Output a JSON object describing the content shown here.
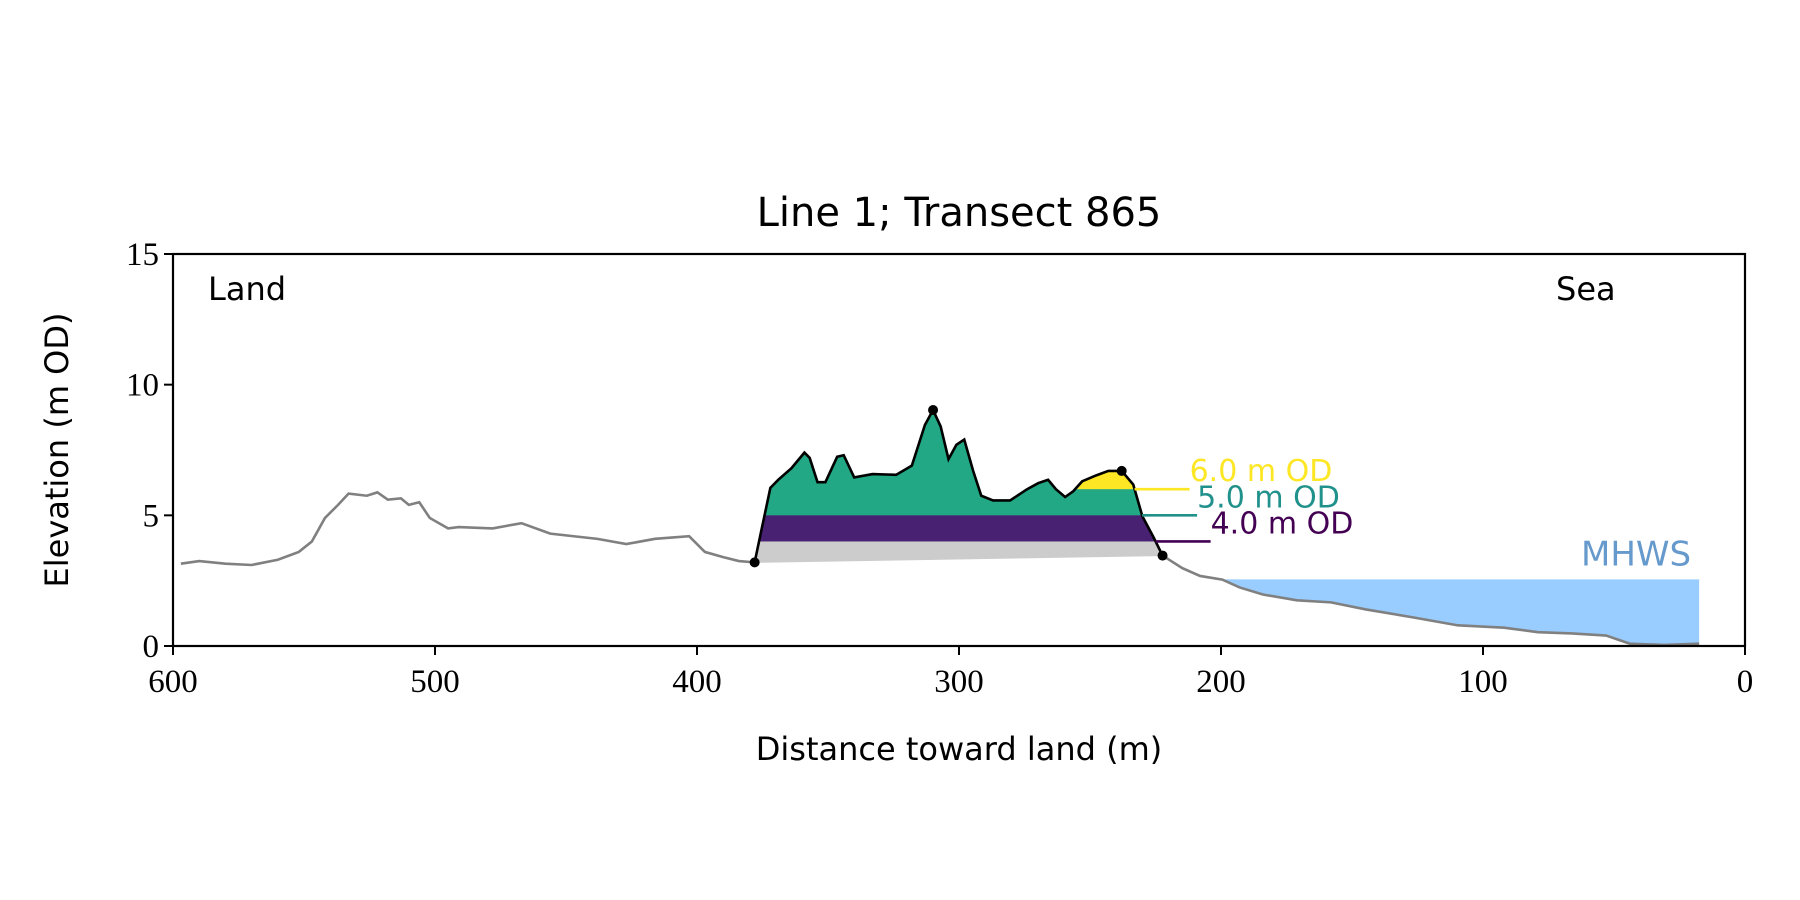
{
  "chart_data": {
    "type": "profile",
    "title": "Line 1; Transect 865",
    "xlabel": "Distance toward land (m)",
    "ylabel": "Elevation (m OD)",
    "xlim": [
      600,
      0
    ],
    "xticks": [
      600,
      500,
      400,
      300,
      200,
      100,
      0
    ],
    "ylim": [
      0,
      15
    ],
    "yticks": [
      0,
      5,
      10,
      15
    ],
    "annotations": [
      "Land",
      "Sea"
    ],
    "profile": {
      "color": "#808080",
      "landward": {
        "x": [
          597,
          590,
          580,
          570,
          560,
          552,
          547,
          542,
          537,
          533,
          526,
          522,
          518,
          513,
          510,
          506,
          502,
          495,
          491,
          478,
          467,
          456,
          438,
          427,
          416,
          403,
          397,
          390,
          384,
          378
        ],
        "values": [
          3.15,
          3.25,
          3.15,
          3.1,
          3.3,
          3.6,
          4.0,
          4.9,
          5.4,
          5.83,
          5.75,
          5.88,
          5.6,
          5.65,
          5.4,
          5.5,
          4.9,
          4.5,
          4.55,
          4.5,
          4.7,
          4.3,
          4.1,
          3.9,
          4.1,
          4.2,
          3.6,
          3.4,
          3.25,
          3.2
        ]
      },
      "seaward": {
        "x": [
          222.3,
          214.8,
          208,
          199.5,
          192.9,
          184,
          171,
          158,
          144.7,
          127,
          109.6,
          92,
          79,
          66,
          53,
          44,
          31,
          17.5
        ],
        "values": [
          3.46,
          2.98,
          2.68,
          2.54,
          2.24,
          1.97,
          1.75,
          1.67,
          1.4,
          1.1,
          0.79,
          0.7,
          0.53,
          0.48,
          0.4,
          0.09,
          0.04,
          0.09
        ]
      }
    },
    "dune": {
      "color": "#000000",
      "base_fill": "#cccccc",
      "x": [
        378,
        375.7,
        372,
        369,
        364,
        359,
        357,
        354,
        351,
        346.5,
        344,
        340,
        333,
        324,
        318,
        313,
        309.9,
        307,
        304,
        301,
        298,
        294.6,
        291.5,
        287,
        280.5,
        274,
        269.8,
        266,
        263,
        259.5,
        256.4,
        253,
        247.6,
        243,
        237.9,
        233.5,
        230,
        225.8,
        222.3
      ],
      "values": [
        3.2,
        4.3,
        6.05,
        6.36,
        6.8,
        7.4,
        7.2,
        6.27,
        6.27,
        7.24,
        7.3,
        6.45,
        6.58,
        6.55,
        6.9,
        8.46,
        9.03,
        8.4,
        7.15,
        7.7,
        7.9,
        6.7,
        5.75,
        5.57,
        5.57,
        6.0,
        6.23,
        6.36,
        6.0,
        5.7,
        5.92,
        6.3,
        6.53,
        6.7,
        6.7,
        6.18,
        4.96,
        4.17,
        3.46
      ],
      "markers": {
        "x": [
          378,
          309.9,
          237.9,
          222.3
        ],
        "values": [
          3.2,
          9.03,
          6.7,
          3.46
        ]
      }
    },
    "levels": [
      {
        "value": 4,
        "label": "4.0 m OD",
        "color": "#440154",
        "fill": "#482173"
      },
      {
        "value": 5,
        "label": "5.0 m OD",
        "color": "#21918c",
        "fill": "#22a884"
      },
      {
        "value": 6,
        "label": "6.0 m OD",
        "color": "#fde725",
        "fill": "#fde725"
      }
    ],
    "mhws": {
      "label": "MHWS",
      "value": 2.55,
      "color": "#6699cc",
      "fill": "#99ccff"
    }
  }
}
